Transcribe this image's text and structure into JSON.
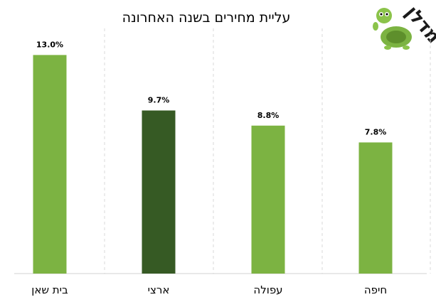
{
  "chart_data": {
    "type": "bar",
    "title": "עליית מחירים בשנה האחרונה",
    "categories": [
      "בית שאן",
      "ארצי",
      "עפולה",
      "חיפה"
    ],
    "values": [
      13.0,
      9.7,
      8.8,
      7.8
    ],
    "data_labels": [
      "13.0%",
      "9.7%",
      "8.8%",
      "7.8%"
    ],
    "ylim": [
      0,
      14.2
    ],
    "grid": "vertical dashed",
    "colors": {
      "default_bar": "#7cb342",
      "highlight_bar": "#365a24",
      "highlight_category": "ארצי"
    }
  },
  "logo": {
    "text": "מדלן",
    "icon": "turtle-icon"
  }
}
